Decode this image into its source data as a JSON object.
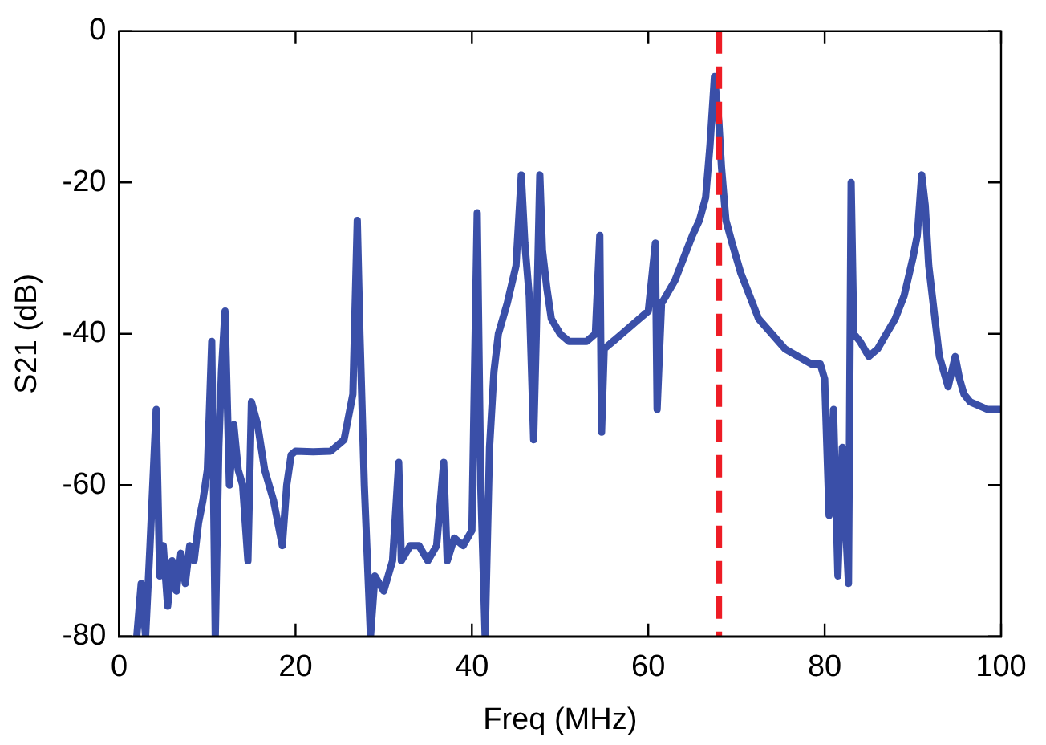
{
  "chart_data": {
    "type": "line",
    "xlabel": "Freq (MHz)",
    "ylabel": "S21 (dB)",
    "xlim": [
      0,
      100
    ],
    "ylim": [
      -80,
      0
    ],
    "xticks": [
      0,
      20,
      40,
      60,
      80,
      100
    ],
    "yticks": [
      -80,
      -60,
      -40,
      -20,
      0
    ],
    "grid": false,
    "legend": false,
    "marker": "none",
    "line_style": "solid",
    "series": [
      {
        "color": "#3a4fa8",
        "x": [
          2,
          2.5,
          3,
          3.5,
          4.2,
          4.6,
          5,
          5.5,
          6,
          6.5,
          7,
          7.5,
          8,
          8.5,
          9,
          9.5,
          10,
          10.5,
          10.9,
          11.3,
          11.6,
          12,
          12.5,
          13,
          13.5,
          14,
          14.6,
          15,
          15.7,
          16.5,
          17.5,
          18.5,
          19,
          19.5,
          20,
          22,
          24,
          25.5,
          26.5,
          27,
          27.3,
          27.8,
          28.5,
          29,
          30,
          31,
          31.7,
          32,
          33,
          34,
          35,
          36,
          36.8,
          37.2,
          38,
          39,
          40,
          40.6,
          41,
          41.5,
          42,
          42.5,
          43,
          44,
          45,
          45.6,
          46,
          46.5,
          47,
          47.3,
          47.7,
          48,
          48.5,
          49,
          50,
          51,
          52,
          53,
          54,
          54.5,
          54.7,
          55,
          56,
          57,
          58,
          59,
          60,
          60.8,
          61,
          61.5,
          62,
          63,
          64,
          65,
          65.8,
          66.5,
          67,
          67.5,
          68,
          68.3,
          68.8,
          69.5,
          70.5,
          71.5,
          72.5,
          74,
          75.5,
          77,
          78.5,
          79.5,
          80,
          80.5,
          81,
          81.5,
          82,
          82.4,
          82.7,
          83,
          83.3,
          84,
          85,
          86,
          87,
          88,
          89,
          90,
          90.5,
          91,
          91.4,
          91.8,
          92.5,
          93,
          94,
          94.8,
          95.3,
          95.8,
          96.5,
          97.5,
          98.5,
          100
        ],
        "values": [
          -80,
          -73,
          -80,
          -68,
          -50,
          -72,
          -68,
          -76,
          -70,
          -74,
          -69,
          -73,
          -68,
          -70,
          -65,
          -62,
          -58,
          -41,
          -80,
          -55,
          -45,
          -37,
          -60,
          -52,
          -58,
          -60,
          -70,
          -49,
          -52,
          -58,
          -62,
          -68,
          -60,
          -56,
          -55.5,
          -55.6,
          -55.5,
          -54,
          -48,
          -25,
          -40,
          -60,
          -80,
          -72,
          -74,
          -70,
          -57,
          -70,
          -68,
          -68,
          -70,
          -68,
          -57,
          -70,
          -67,
          -68,
          -66,
          -24,
          -60,
          -80,
          -55,
          -45,
          -40,
          -36,
          -31,
          -19,
          -28,
          -35,
          -54,
          -40,
          -19,
          -29,
          -34,
          -38,
          -40,
          -41,
          -41,
          -41,
          -40,
          -27,
          -53,
          -42,
          -41,
          -40,
          -39,
          -38,
          -37,
          -28,
          -50,
          -36,
          -35,
          -33,
          -30,
          -27,
          -25,
          -22,
          -15,
          -6,
          -12,
          -18,
          -25,
          -28,
          -32,
          -35,
          -38,
          -40,
          -42,
          -43,
          -44,
          -44,
          -46,
          -64,
          -50,
          -72,
          -55,
          -66,
          -73,
          -20,
          -40,
          -41,
          -43,
          -42,
          -40,
          -38,
          -35,
          -30,
          -27,
          -19,
          -23,
          -31,
          -38,
          -43,
          -47,
          -43,
          -46,
          -48,
          -49,
          -49.5,
          -50,
          -50
        ]
      }
    ],
    "ref_lines": [
      {
        "axis": "x",
        "value": 68,
        "color": "#ee1c25",
        "line_style": "dashed"
      }
    ]
  }
}
